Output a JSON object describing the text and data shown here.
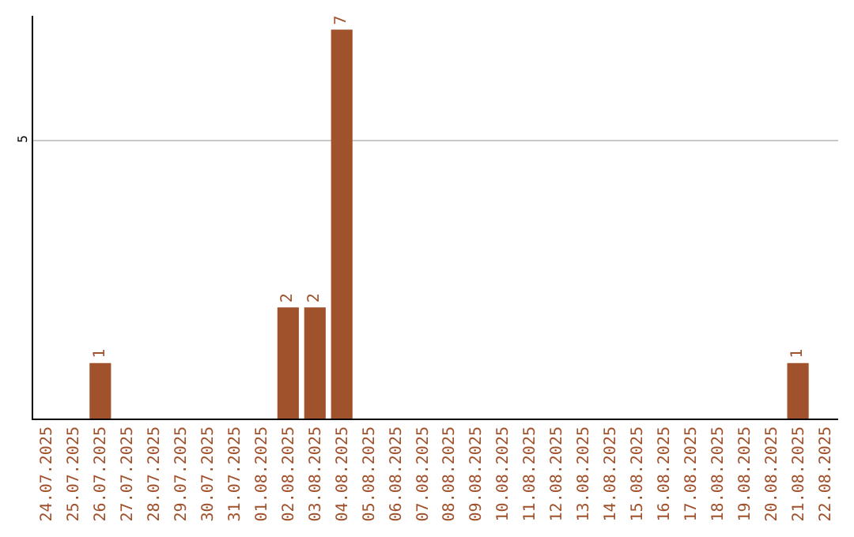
{
  "chart_data": {
    "type": "bar",
    "categories": [
      "24.07.2025",
      "25.07.2025",
      "26.07.2025",
      "27.07.2025",
      "28.07.2025",
      "29.07.2025",
      "30.07.2025",
      "31.07.2025",
      "01.08.2025",
      "02.08.2025",
      "03.08.2025",
      "04.08.2025",
      "05.08.2025",
      "06.08.2025",
      "07.08.2025",
      "08.08.2025",
      "09.08.2025",
      "10.08.2025",
      "11.08.2025",
      "12.08.2025",
      "13.08.2025",
      "14.08.2025",
      "15.08.2025",
      "16.08.2025",
      "17.08.2025",
      "18.08.2025",
      "19.08.2025",
      "20.08.2025",
      "21.08.2025",
      "22.08.2025"
    ],
    "values": [
      0,
      0,
      1,
      0,
      0,
      0,
      0,
      0,
      0,
      2,
      2,
      7,
      0,
      0,
      0,
      0,
      0,
      0,
      0,
      0,
      0,
      0,
      0,
      0,
      0,
      0,
      0,
      0,
      1,
      0
    ],
    "value_labels": [
      null,
      null,
      "1",
      null,
      null,
      null,
      null,
      null,
      null,
      "2",
      "2",
      "7",
      null,
      null,
      null,
      null,
      null,
      null,
      null,
      null,
      null,
      null,
      null,
      null,
      null,
      null,
      null,
      null,
      "1",
      null
    ],
    "color": "#a0522d",
    "ylim": [
      0,
      7.25
    ],
    "yticks": [
      5
    ],
    "grid": "y",
    "legend": false
  }
}
